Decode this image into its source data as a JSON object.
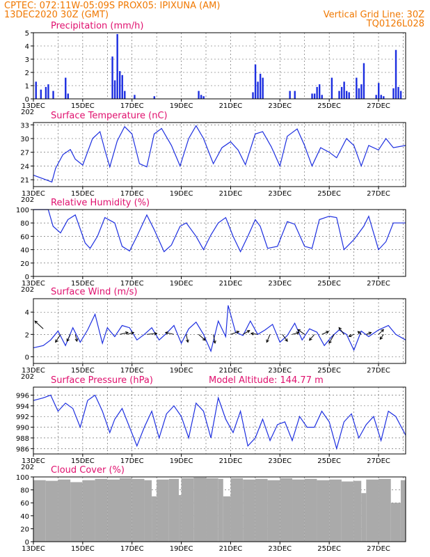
{
  "header": {
    "line1": "CPTEC:   072:11W-05:09S   PROX05: IPIXUNA (AM)",
    "line2_left": "13DEC2020 30Z (GMT)",
    "line2_right": "Vertical Grid Line: 30Z",
    "line3_right": "TQ0126L028"
  },
  "x_labels": [
    "13DEC",
    "15DEC",
    "17DEC",
    "19DEC",
    "21DEC",
    "23DEC",
    "25DEC",
    "27DEC"
  ],
  "year_label": "202",
  "colors": {
    "header": "#f07800",
    "title": "#e0106e",
    "series": "#1c2ee0",
    "cloud": "#aaaaaa"
  },
  "chart_data": [
    {
      "type": "bar",
      "title": "Precipitation (mm/h)",
      "x_range": [
        0,
        15.1
      ],
      "ylim": [
        0,
        5
      ],
      "yticks": [
        0,
        1,
        2,
        3,
        4,
        5
      ],
      "x": [
        0.1,
        0.3,
        0.5,
        0.6,
        0.8,
        1.3,
        1.4,
        3.2,
        3.3,
        3.4,
        3.5,
        3.6,
        3.7,
        4.1,
        4.9,
        6.7,
        6.8,
        6.9,
        8.9,
        9.0,
        9.1,
        9.2,
        9.3,
        10.4,
        10.6,
        11.3,
        11.4,
        11.5,
        11.6,
        11.7,
        12.1,
        12.4,
        12.5,
        12.6,
        12.7,
        12.8,
        13.1,
        13.2,
        13.3,
        13.4,
        13.9,
        14.0,
        14.1,
        14.2,
        14.6,
        14.7,
        14.8,
        14.9
      ],
      "values": [
        1.3,
        0.7,
        0.9,
        1.1,
        0.6,
        1.6,
        0.4,
        3.2,
        1.4,
        4.9,
        2.1,
        1.8,
        0.6,
        0.3,
        0.2,
        0.6,
        0.3,
        0.2,
        0.5,
        2.6,
        1.3,
        1.9,
        1.6,
        0.6,
        0.6,
        0.4,
        0.4,
        0.9,
        1.1,
        0.3,
        1.6,
        0.6,
        0.9,
        1.3,
        0.6,
        0.5,
        1.6,
        0.8,
        1.1,
        2.7,
        0.3,
        1.2,
        0.3,
        0.2,
        0.8,
        3.7,
        0.9,
        0.6
      ]
    },
    {
      "type": "line",
      "title": "Surface Temperature (nC)",
      "x_range": [
        0,
        15.1
      ],
      "ylim": [
        19.5,
        33.5
      ],
      "yticks": [
        21,
        24,
        27,
        30,
        33
      ],
      "x": [
        0,
        0.5,
        0.75,
        0.9,
        1.2,
        1.5,
        1.7,
        2.0,
        2.4,
        2.7,
        2.9,
        3.1,
        3.4,
        3.7,
        4.0,
        4.3,
        4.6,
        4.9,
        5.2,
        5.6,
        5.95,
        6.3,
        6.6,
        6.9,
        7.3,
        7.65,
        8.0,
        8.3,
        8.6,
        9.0,
        9.3,
        9.65,
        10.0,
        10.3,
        10.7,
        11.0,
        11.3,
        11.65,
        12.0,
        12.3,
        12.7,
        13.0,
        13.3,
        13.6,
        14.0,
        14.3,
        14.6,
        15.1
      ],
      "values": [
        22.0,
        21.0,
        20.5,
        23.5,
        26.5,
        27.6,
        25.5,
        24.2,
        30.0,
        31.5,
        27.5,
        23.8,
        29.5,
        32.6,
        31.0,
        24.5,
        23.8,
        31.0,
        32.2,
        28.5,
        24.0,
        30.0,
        32.8,
        30.0,
        24.5,
        28.0,
        29.3,
        27.5,
        24.3,
        31.0,
        31.5,
        28.2,
        24.0,
        30.5,
        32.1,
        28.5,
        24.0,
        28.0,
        27.0,
        25.8,
        30.0,
        28.5,
        24.0,
        28.5,
        27.5,
        30.0,
        28.0,
        28.5
      ]
    },
    {
      "type": "line",
      "title": "Relative Humidity (%)",
      "x_range": [
        0,
        15.1
      ],
      "ylim": [
        0,
        100
      ],
      "yticks": [
        0,
        20,
        40,
        60,
        80,
        100
      ],
      "x": [
        0,
        0.6,
        0.8,
        1.1,
        1.4,
        1.7,
        2.1,
        2.3,
        2.6,
        2.9,
        3.3,
        3.6,
        3.9,
        4.2,
        4.6,
        4.9,
        5.3,
        5.6,
        5.95,
        6.2,
        6.6,
        6.9,
        7.2,
        7.5,
        7.8,
        8.1,
        8.4,
        8.7,
        9.0,
        9.2,
        9.5,
        9.9,
        10.3,
        10.6,
        11.0,
        11.3,
        11.6,
        12.0,
        12.3,
        12.6,
        13.0,
        13.4,
        13.6,
        14.0,
        14.3,
        14.6,
        15.1
      ],
      "values": [
        100,
        100,
        75,
        65,
        85,
        92,
        50,
        42,
        60,
        88,
        80,
        45,
        38,
        60,
        92,
        70,
        37,
        47,
        75,
        80,
        60,
        40,
        62,
        80,
        88,
        60,
        37,
        60,
        85,
        75,
        42,
        45,
        82,
        78,
        45,
        42,
        85,
        90,
        88,
        40,
        55,
        75,
        90,
        40,
        52,
        80,
        80
      ]
    },
    {
      "type": "line",
      "title": "Surface Wind (m/s)",
      "x_range": [
        0,
        15.1
      ],
      "ylim": [
        -0.6,
        5.2
      ],
      "yticks": [
        0,
        2,
        4
      ],
      "x": [
        0,
        0.4,
        0.7,
        1.0,
        1.3,
        1.6,
        1.9,
        2.2,
        2.5,
        2.8,
        3.0,
        3.3,
        3.6,
        3.9,
        4.2,
        4.5,
        4.8,
        5.1,
        5.4,
        5.7,
        6.0,
        6.3,
        6.6,
        6.9,
        7.2,
        7.5,
        7.8,
        7.9,
        8.2,
        8.5,
        8.8,
        9.1,
        9.4,
        9.7,
        10.0,
        10.3,
        10.6,
        10.9,
        11.2,
        11.5,
        11.8,
        12.1,
        12.4,
        12.7,
        13.0,
        13.3,
        13.6,
        14.0,
        14.4,
        14.7,
        15.1
      ],
      "values": [
        0.8,
        1.0,
        1.5,
        2.3,
        1.0,
        2.6,
        1.3,
        2.4,
        3.8,
        1.2,
        2.6,
        1.8,
        2.8,
        2.6,
        1.5,
        2.0,
        2.6,
        1.5,
        2.1,
        2.8,
        1.2,
        2.5,
        3.1,
        2.0,
        0.5,
        3.2,
        1.8,
        4.6,
        2.2,
        1.9,
        3.2,
        2.0,
        2.4,
        2.9,
        1.3,
        1.9,
        3.0,
        1.5,
        2.5,
        2.2,
        1.0,
        1.8,
        2.4,
        2.0,
        0.6,
        2.3,
        1.8,
        2.4,
        2.8,
        2.0,
        1.5
      ],
      "arrows_x": [
        0.4,
        1.1,
        1.5,
        1.7,
        3.5,
        3.8,
        4.6,
        5.7,
        6.2,
        6.7,
        7.3,
        8.0,
        8.5,
        9.1,
        9.6,
        10.1,
        10.5,
        11.0,
        11.4,
        11.7,
        12.2,
        12.6,
        13.0,
        13.3,
        13.5,
        14.0,
        14.2
      ],
      "arrows_y": [
        2.5,
        2.0,
        2.0,
        2.0,
        2.0,
        2.0,
        2.0,
        2.0,
        2.0,
        2.0,
        2.0,
        2.0,
        2.0,
        2.0,
        2.0,
        2.0,
        2.0,
        2.0,
        2.0,
        2.0,
        2.0,
        2.0,
        2.0,
        2.0,
        2.0,
        2.0,
        2.0
      ],
      "arrows_dx": [
        -0.5,
        -0.3,
        -0.2,
        0.1,
        0.5,
        0.4,
        0.6,
        -0.5,
        0.1,
        0.4,
        0.1,
        0.5,
        0.4,
        -0.4,
        -0.2,
        0.3,
        0.4,
        -0.4,
        -0.3,
        0.4,
        -0.3,
        -0.3,
        -0.3,
        -0.2,
        0.3,
        0.3,
        -0.2
      ],
      "arrows_dy": [
        0.8,
        -0.8,
        -0.7,
        -0.7,
        0.2,
        0.2,
        0.1,
        0.2,
        -0.8,
        -0.6,
        -0.9,
        0.3,
        0.4,
        0.1,
        -0.8,
        -0.7,
        0.2,
        0.5,
        -0.6,
        0.3,
        -0.9,
        0.7,
        -0.2,
        0.3,
        0.2,
        0.5,
        -0.5
      ]
    },
    {
      "type": "line",
      "title": "Surface Pressure (hPa)",
      "subtitle": "Model Altitude: 144.77  m",
      "x_range": [
        0,
        15.1
      ],
      "ylim": [
        985,
        997.5
      ],
      "yticks": [
        986,
        988,
        990,
        992,
        994,
        996
      ],
      "x": [
        0,
        0.4,
        0.7,
        1.0,
        1.3,
        1.6,
        1.9,
        2.2,
        2.5,
        2.8,
        3.1,
        3.3,
        3.6,
        3.9,
        4.2,
        4.5,
        4.8,
        5.1,
        5.4,
        5.7,
        6.0,
        6.3,
        6.6,
        6.9,
        7.2,
        7.5,
        7.8,
        8.1,
        8.4,
        8.7,
        9.0,
        9.3,
        9.6,
        9.9,
        10.2,
        10.5,
        10.8,
        11.1,
        11.4,
        11.7,
        12.0,
        12.3,
        12.6,
        12.9,
        13.2,
        13.5,
        13.8,
        14.1,
        14.4,
        14.7,
        15.1
      ],
      "values": [
        995.0,
        995.5,
        996.0,
        993.0,
        994.5,
        993.5,
        990.0,
        995.0,
        996.0,
        993.0,
        989.0,
        991.5,
        993.5,
        990.0,
        986.5,
        990.0,
        993.0,
        988.0,
        992.5,
        994.0,
        992.0,
        988.0,
        994.5,
        993.0,
        988.0,
        995.5,
        991.5,
        989.0,
        993.0,
        986.5,
        988.0,
        991.5,
        987.5,
        990.5,
        991.0,
        987.5,
        992.0,
        990.0,
        990.0,
        993.0,
        991.0,
        986.0,
        991.0,
        992.5,
        988.0,
        990.5,
        992.0,
        987.5,
        993.0,
        992.0,
        988.5
      ]
    },
    {
      "type": "bar",
      "title": "Cloud Cover (%)",
      "x_range": [
        0,
        15.1
      ],
      "ylim": [
        0,
        100
      ],
      "yticks": [
        0,
        20,
        40,
        60,
        80,
        100
      ],
      "x": [
        0,
        0.5,
        1.0,
        1.5,
        2.0,
        2.5,
        3.0,
        3.5,
        4.0,
        4.5,
        4.8,
        5.0,
        5.5,
        5.9,
        6.0,
        6.5,
        7.0,
        7.5,
        7.7,
        8.0,
        8.5,
        9.0,
        9.5,
        10.0,
        10.5,
        11.0,
        11.5,
        12.0,
        12.5,
        13.0,
        13.3,
        13.5,
        14.0,
        14.5,
        14.9
      ],
      "values": [
        95,
        94,
        96,
        92,
        95,
        97,
        96,
        98,
        97,
        95,
        70,
        96,
        97,
        72,
        98,
        99,
        98,
        97,
        70,
        98,
        96,
        97,
        95,
        98,
        96,
        97,
        95,
        96,
        93,
        94,
        75,
        96,
        97,
        60,
        95
      ]
    }
  ]
}
